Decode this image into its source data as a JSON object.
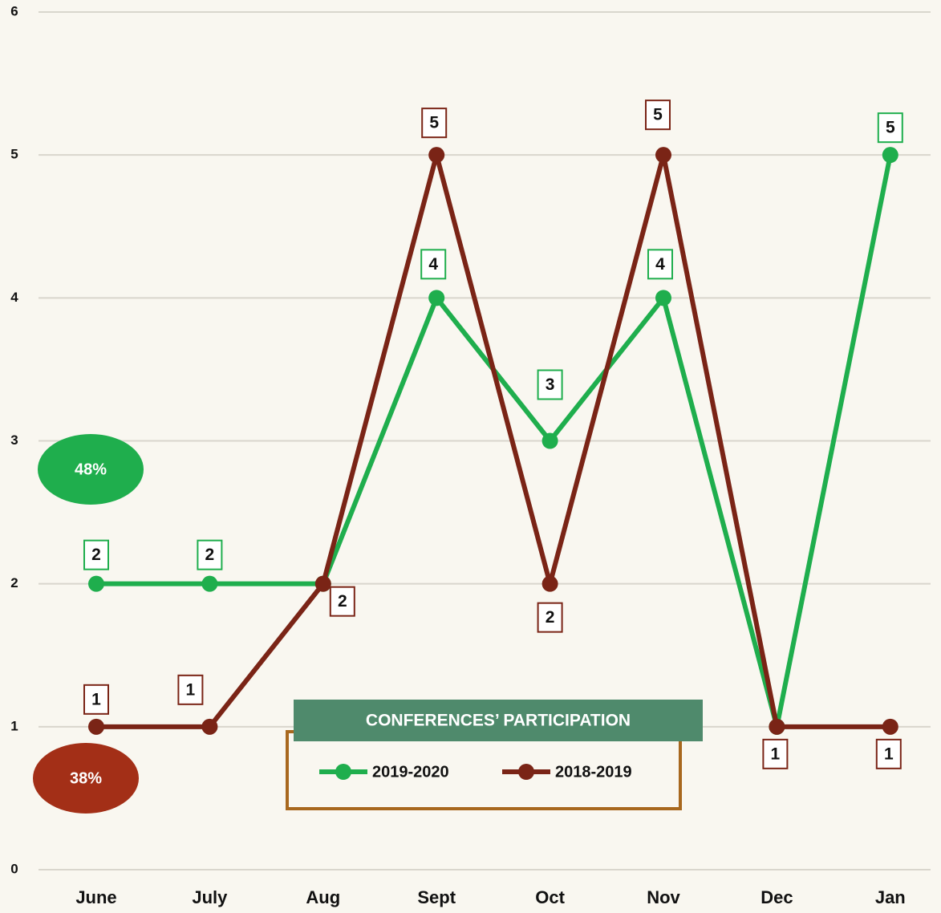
{
  "chart_data": {
    "type": "line",
    "title": "CONFERENCES’ PARTICIPATION",
    "categories": [
      "June",
      "July",
      "Aug",
      "Sept",
      "Oct",
      "Nov",
      "Dec",
      "Jan"
    ],
    "series": [
      {
        "name": "2019-2020",
        "color": "#1fae4d",
        "values": [
          2,
          2,
          2,
          4,
          3,
          4,
          1,
          5
        ]
      },
      {
        "name": "2018-2019",
        "color": "#7a2416",
        "values": [
          1,
          1,
          2,
          5,
          2,
          5,
          1,
          1
        ]
      }
    ],
    "annotations": [
      {
        "text": "48%",
        "color": "#1fae4d"
      },
      {
        "text": "38%",
        "color": "#a32f17"
      }
    ],
    "ylim": [
      0,
      6
    ],
    "yticks": [
      0,
      1,
      2,
      3,
      4,
      5,
      6
    ],
    "grid": true
  }
}
